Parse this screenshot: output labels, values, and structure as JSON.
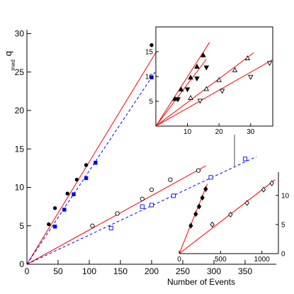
{
  "chart_data": [
    {
      "type": "scatter",
      "xlabel": "Number of Events",
      "ylabel": "q",
      "ylabel_subscript": "med",
      "xlim": [
        0,
        400
      ],
      "ylim": [
        0,
        30.5
      ],
      "xticks": [
        0,
        50,
        100,
        150,
        200,
        250,
        300,
        350
      ],
      "yticks": [
        0,
        5,
        10,
        15,
        20,
        25,
        30
      ],
      "series": [
        {
          "marker": "filled-circle",
          "color": "#000000",
          "x": [
            35,
            45,
            65,
            80,
            95,
            200
          ],
          "y": [
            5.2,
            7.3,
            9.2,
            11.0,
            12.9,
            28.5
          ]
        },
        {
          "marker": "filled-square",
          "color": "#0000ff",
          "x": [
            45,
            60,
            75,
            95,
            110,
            200
          ],
          "y": [
            4.9,
            7.1,
            9.1,
            11.2,
            13.2,
            24.3
          ]
        },
        {
          "marker": "open-circle",
          "color": "#000000",
          "x": [
            105,
            145,
            185,
            200,
            230,
            275
          ],
          "y": [
            5.0,
            6.6,
            8.5,
            9.7,
            11.0,
            12.2
          ]
        },
        {
          "marker": "open-square",
          "color": "#0000ff",
          "x": [
            135,
            185,
            200,
            235,
            295,
            350
          ],
          "y": [
            4.7,
            7.5,
            7.7,
            8.9,
            11.3,
            13.7
          ]
        }
      ],
      "fit_lines": [
        {
          "style": "solid",
          "color": "#ff0000",
          "x": [
            0,
            229
          ],
          "y": [
            0,
            30.5
          ]
        },
        {
          "style": "dashed",
          "color": "#0000ff",
          "x": [
            0,
            218
          ],
          "y": [
            0,
            26.5
          ]
        },
        {
          "style": "solid",
          "color": "#ff0000",
          "x": [
            0,
            287
          ],
          "y": [
            0,
            12.8
          ]
        },
        {
          "style": "dashed",
          "color": "#0000ff",
          "x": [
            0,
            368
          ],
          "y": [
            0,
            14.0
          ]
        }
      ]
    },
    {
      "type": "scatter",
      "xlim": [
        0,
        37
      ],
      "ylim": [
        0,
        20
      ],
      "xticks": [
        10,
        20,
        30
      ],
      "yticks": [
        5,
        10,
        15
      ],
      "series": [
        {
          "marker": "filled-triangle-up",
          "x": [
            6,
            8,
            11,
            13,
            15
          ],
          "y": [
            5.5,
            7.4,
            9.8,
            12.0,
            14.3
          ]
        },
        {
          "marker": "filled-triangle-down",
          "x": [
            7,
            10,
            13,
            16
          ],
          "y": [
            5.4,
            7.4,
            9.6,
            11.8
          ]
        },
        {
          "marker": "open-triangle-up",
          "x": [
            11,
            16,
            20,
            25,
            29
          ],
          "y": [
            5.7,
            7.5,
            9.3,
            11.3,
            13.7
          ]
        },
        {
          "marker": "open-triangle-down",
          "x": [
            14,
            21,
            30,
            36
          ],
          "y": [
            5.1,
            7.1,
            9.9,
            12.7
          ]
        }
      ],
      "fit_lines": [
        {
          "style": "solid",
          "color": "#ff0000",
          "x": [
            0,
            17
          ],
          "y": [
            0,
            16.9
          ]
        },
        {
          "style": "solid",
          "color": "#ff0000",
          "x": [
            0,
            16
          ],
          "y": [
            0,
            13.5
          ]
        },
        {
          "style": "solid",
          "color": "#ff0000",
          "x": [
            0,
            31
          ],
          "y": [
            0,
            14.8
          ]
        },
        {
          "style": "solid",
          "color": "#ff0000",
          "x": [
            0,
            37
          ],
          "y": [
            0,
            13.4
          ]
        }
      ]
    },
    {
      "type": "scatter",
      "xlim": [
        0,
        1200
      ],
      "ylim": [
        0,
        14
      ],
      "xticks": [
        0,
        500,
        1000
      ],
      "yticks": [
        0,
        5,
        10
      ],
      "series": [
        {
          "marker": "filled-diamond",
          "x": [
            140,
            200,
            240,
            280,
            320
          ],
          "y": [
            4.8,
            6.8,
            8.1,
            9.6,
            11.1
          ]
        },
        {
          "marker": "open-diamond",
          "x": [
            400,
            620,
            820,
            1020,
            1120
          ],
          "y": [
            5.0,
            6.7,
            8.7,
            11.0,
            12.1
          ]
        }
      ],
      "fit_lines": [
        {
          "style": "solid",
          "color": "#ff0000",
          "x": [
            0,
            340
          ],
          "y": [
            0,
            12.0
          ]
        },
        {
          "style": "solid",
          "color": "#ff0000",
          "x": [
            0,
            1160
          ],
          "y": [
            0,
            12.7
          ]
        }
      ]
    }
  ]
}
